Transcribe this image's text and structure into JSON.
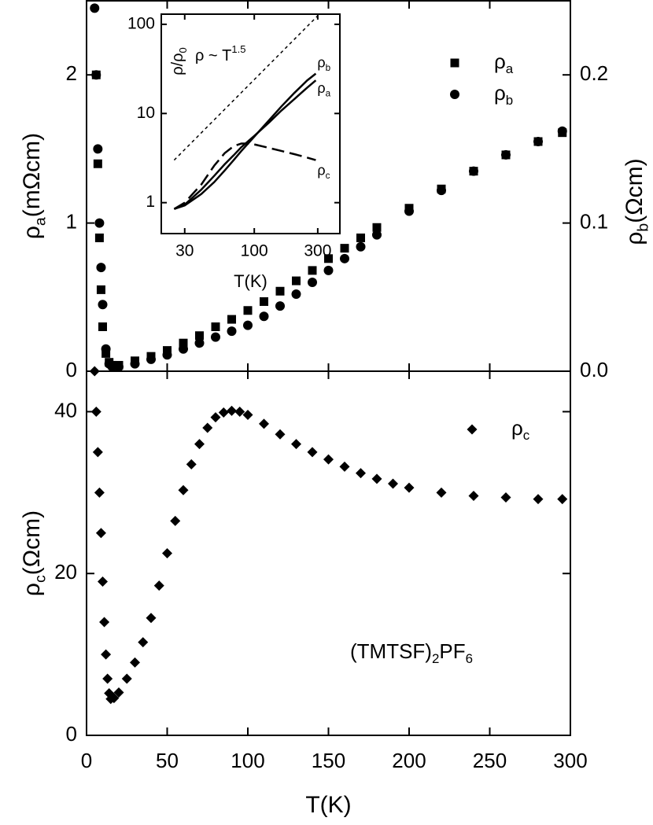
{
  "chart_data": [
    {
      "type": "scatter",
      "xlim": [
        0,
        300
      ],
      "xticks": [
        0,
        50,
        100,
        150,
        200,
        250,
        300
      ],
      "ylim": [
        0,
        2.5
      ],
      "yticks": [
        0,
        1,
        2
      ],
      "y2lim": [
        0,
        0.25
      ],
      "y2ticks": [
        {
          "value": 0,
          "label": "0.0"
        },
        0.1,
        0.2
      ],
      "ylabel": [
        "ρ",
        "a",
        "(mΩcm)"
      ],
      "y2label": [
        "ρ",
        "b",
        "(Ωcm)"
      ],
      "legend": "upper right",
      "series": [
        {
          "name": "ρa",
          "marker": "square",
          "color": "#000000",
          "x": [
            6,
            7,
            8,
            9,
            10,
            12,
            14,
            16,
            20,
            30,
            40,
            50,
            60,
            70,
            80,
            90,
            100,
            110,
            120,
            130,
            140,
            150,
            160,
            170,
            180,
            200,
            220,
            240,
            260,
            280,
            295
          ],
          "values": [
            2.0,
            1.4,
            0.9,
            0.55,
            0.3,
            0.12,
            0.06,
            0.04,
            0.04,
            0.07,
            0.1,
            0.14,
            0.19,
            0.24,
            0.3,
            0.35,
            0.41,
            0.47,
            0.54,
            0.61,
            0.68,
            0.76,
            0.83,
            0.9,
            0.97,
            1.1,
            1.23,
            1.35,
            1.46,
            1.55,
            1.61
          ]
        },
        {
          "name": "ρb",
          "marker": "circle",
          "color": "#000000",
          "axis": "y2",
          "x": [
            5,
            6,
            7,
            8,
            9,
            10,
            12,
            14,
            16,
            20,
            30,
            40,
            50,
            60,
            70,
            80,
            90,
            100,
            110,
            120,
            130,
            140,
            150,
            160,
            170,
            180,
            200,
            220,
            240,
            260,
            280,
            295
          ],
          "values": [
            0.245,
            0.2,
            0.15,
            0.1,
            0.07,
            0.045,
            0.015,
            0.005,
            0.003,
            0.003,
            0.005,
            0.008,
            0.011,
            0.015,
            0.019,
            0.023,
            0.027,
            0.031,
            0.037,
            0.044,
            0.052,
            0.06,
            0.068,
            0.076,
            0.084,
            0.092,
            0.108,
            0.122,
            0.135,
            0.146,
            0.155,
            0.162
          ]
        }
      ]
    },
    {
      "type": "scatter",
      "xlim": [
        0,
        300
      ],
      "xticks": [
        0,
        50,
        100,
        150,
        200,
        250,
        300
      ],
      "xlabel": "T(K)",
      "ylim": [
        0,
        45
      ],
      "yticks": [
        0,
        20,
        40
      ],
      "ylabel": [
        "ρ",
        "c",
        "(Ωcm)"
      ],
      "annotation": [
        "(TMTSF)",
        "2",
        "PF",
        "6"
      ],
      "legend": "upper right",
      "series": [
        {
          "name": "ρc",
          "marker": "diamond",
          "color": "#000000",
          "x": [
            5,
            6,
            7,
            8,
            9,
            10,
            11,
            12,
            13,
            14,
            15,
            17,
            20,
            25,
            30,
            35,
            40,
            45,
            50,
            55,
            60,
            65,
            70,
            75,
            80,
            85,
            90,
            95,
            100,
            110,
            120,
            130,
            140,
            150,
            160,
            170,
            180,
            190,
            200,
            220,
            240,
            260,
            280,
            295
          ],
          "values": [
            45,
            40,
            35,
            30,
            25,
            19,
            14,
            10,
            7,
            5.2,
            4.5,
            4.6,
            5.3,
            7,
            9,
            11.5,
            14.5,
            18.5,
            22.5,
            26.5,
            30.3,
            33.5,
            36,
            38,
            39.3,
            39.9,
            40.1,
            40,
            39.6,
            38.5,
            37.2,
            36,
            35,
            34.1,
            33.2,
            32.4,
            31.7,
            31.1,
            30.6,
            30,
            29.6,
            29.4,
            29.2,
            29.2
          ]
        }
      ]
    },
    {
      "type": "line",
      "xscale": "log",
      "yscale": "log",
      "xlim": [
        20,
        440
      ],
      "xticks": [
        30,
        100,
        300
      ],
      "xlabel": "T(K)",
      "ylim": [
        0.45,
        130
      ],
      "yticks": [
        1,
        10,
        100
      ],
      "ylabel": [
        "ρ/ρ",
        "0"
      ],
      "fit_label": [
        "ρ ~ T",
        "1.5"
      ],
      "series": [
        {
          "name": "ρb",
          "color": "#000000",
          "dash": "solid",
          "x": [
            25,
            30,
            40,
            50,
            60,
            70,
            80,
            100,
            130,
            160,
            200,
            250,
            290
          ],
          "values": [
            0.85,
            0.93,
            1.25,
            1.7,
            2.3,
            3.0,
            3.8,
            5.5,
            8.5,
            12,
            17,
            23.5,
            28
          ]
        },
        {
          "name": "ρa",
          "color": "#000000",
          "dash": "solid",
          "x": [
            25,
            30,
            40,
            50,
            60,
            70,
            80,
            100,
            130,
            160,
            200,
            250,
            290
          ],
          "values": [
            0.85,
            0.95,
            1.4,
            2.0,
            2.7,
            3.4,
            4.2,
            5.6,
            8.0,
            10.8,
            14.5,
            19.5,
            23.5
          ]
        },
        {
          "name": "ρc",
          "color": "#000000",
          "dash": "dashed",
          "x": [
            25,
            30,
            40,
            50,
            60,
            70,
            80,
            90,
            100,
            130,
            160,
            200,
            250,
            290
          ],
          "values": [
            0.85,
            1.0,
            1.6,
            2.6,
            3.6,
            4.3,
            4.6,
            4.6,
            4.5,
            4.1,
            3.8,
            3.5,
            3.2,
            3.0
          ]
        },
        {
          "color": "#000000",
          "dash": "dotted",
          "x": [
            25,
            300
          ],
          "values": [
            3,
            124.7
          ]
        }
      ]
    }
  ]
}
